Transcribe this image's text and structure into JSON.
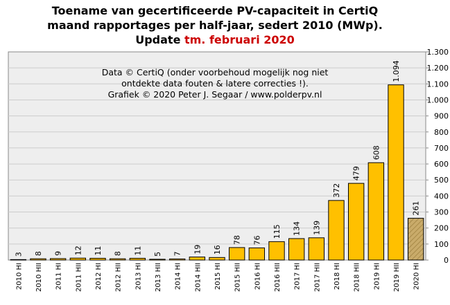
{
  "chart_data": {
    "type": "bar",
    "title_lines": [
      "Toename van gecertificeerde PV-capaciteit in CertiQ",
      "maand rapportages per half-jaar, sedert 2010 (MWp)."
    ],
    "title_update_prefix": "Update ",
    "title_update_highlight": "tm. februari 2020",
    "annotation_lines": [
      "Data © CertiQ (onder voorbehoud mogelijk  nog niet",
      "ontdekte data fouten & latere correcties !).",
      "Grafiek  © 2020 Peter J. Segaar / www.polderpv.nl"
    ],
    "categories": [
      "2010 HI",
      "2010 HII",
      "2011 HI",
      "2011 HII",
      "2012 HI",
      "2012 HII",
      "2013 HI",
      "2013 HII",
      "2014 HI",
      "2014 HII",
      "2015 HI",
      "2015 HII",
      "2016 HI",
      "2016 HII",
      "2017 HI",
      "2017 HII",
      "2018 HI",
      "2018 HII",
      "2019 HI",
      "2019 HII",
      "2020 HI"
    ],
    "values": [
      3,
      8,
      9,
      12,
      11,
      8,
      11,
      5,
      7,
      19,
      16,
      78,
      76,
      115,
      134,
      139,
      372,
      479,
      608,
      1094,
      261
    ],
    "value_labels": [
      "3",
      "8",
      "9",
      "12",
      "11",
      "8",
      "11",
      "5",
      "7",
      "19",
      "16",
      "78",
      "76",
      "115",
      "134",
      "139",
      "372",
      "479",
      "608",
      "1.094",
      "261"
    ],
    "partial_period_index": 20,
    "highlight_label_index": 19,
    "ylim": [
      0,
      1300
    ],
    "y_ticks": [
      0,
      100,
      200,
      300,
      400,
      500,
      600,
      700,
      800,
      900,
      1000,
      1100,
      1200,
      1300
    ],
    "y_tick_labels": [
      "0",
      "100",
      "200",
      "300",
      "400",
      "500",
      "600",
      "700",
      "800",
      "900",
      "1.000",
      "1.100",
      "1.200",
      "1.300"
    ],
    "y_axis_side": "right",
    "grid": true,
    "colors": {
      "bar": "#ffc000",
      "bar_partial": "#c9ab6a",
      "bar_partial_hatch": "#a88a48",
      "plot_background": "#eeeeee",
      "grid": "#cccccc",
      "highlight_text": "#cc0000",
      "partial_label": "#999999"
    }
  }
}
